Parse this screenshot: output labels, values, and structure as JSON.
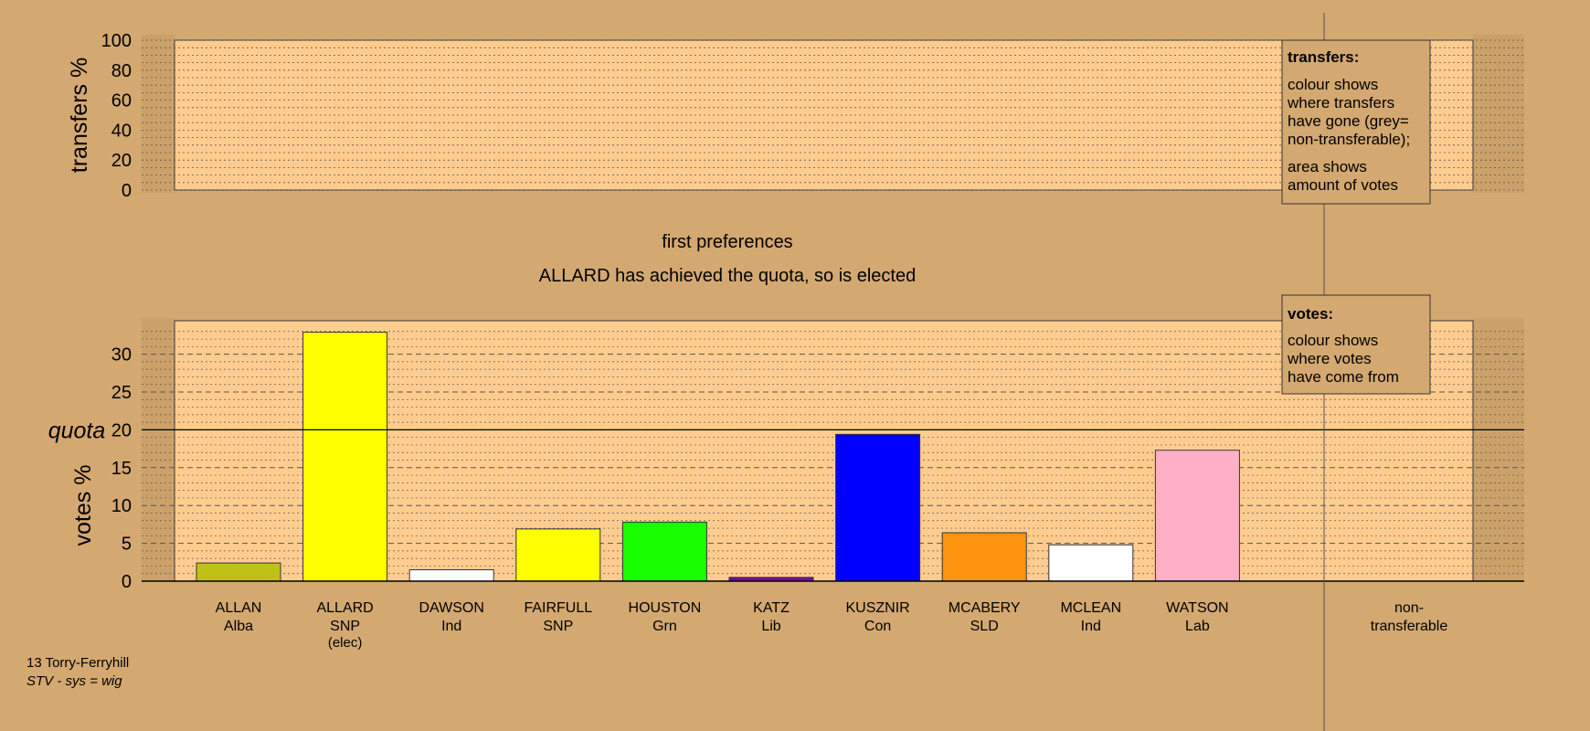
{
  "chart_data": {
    "type": "bar",
    "top_panel": {
      "ylabel": "transfers %",
      "ylim": [
        0,
        100
      ],
      "yticks": [
        "0",
        "20",
        "40",
        "60",
        "80",
        "100"
      ]
    },
    "stage_title": "first preferences",
    "stage_subtitle": "ALLARD has achieved the quota, so is elected",
    "ylabel": "votes %",
    "quota_label": "quota",
    "quota": 20,
    "ylim": [
      0,
      34
    ],
    "yticks": [
      "0",
      "5",
      "10",
      "15",
      "20",
      "25",
      "30"
    ],
    "categories": [
      {
        "name": "ALLAN",
        "party": "Alba",
        "note": ""
      },
      {
        "name": "ALLARD",
        "party": "SNP",
        "note": "(elec)"
      },
      {
        "name": "DAWSON",
        "party": "Ind",
        "note": ""
      },
      {
        "name": "FAIRFULL",
        "party": "SNP",
        "note": ""
      },
      {
        "name": "HOUSTON",
        "party": "Grn",
        "note": ""
      },
      {
        "name": "KATZ",
        "party": "Lib",
        "note": ""
      },
      {
        "name": "KUSZNIR",
        "party": "Con",
        "note": ""
      },
      {
        "name": "MCABERY",
        "party": "SLD",
        "note": ""
      },
      {
        "name": "MCLEAN",
        "party": "Ind",
        "note": ""
      },
      {
        "name": "WATSON",
        "party": "Lab",
        "note": ""
      }
    ],
    "values": [
      2.4,
      32.9,
      1.5,
      6.9,
      7.8,
      0.5,
      19.4,
      6.4,
      4.8,
      17.3
    ],
    "colors": [
      "#c0c018",
      "#ffff00",
      "#ffffff",
      "#ffff00",
      "#1aff00",
      "#7b00a8",
      "#0000ff",
      "#ff9410",
      "#ffffff",
      "#ffb0c8"
    ],
    "nontransferable_label": [
      "non-",
      "transferable"
    ],
    "transfers_box": {
      "title": "transfers:",
      "lines1": [
        "colour shows",
        "where transfers",
        "have gone (grey=",
        "non-transferable);"
      ],
      "lines2": [
        "area shows",
        "amount of votes"
      ]
    },
    "votes_box": {
      "title": "votes:",
      "lines": [
        "colour shows",
        "where votes",
        "have come from"
      ]
    },
    "footer": {
      "ward": "13 Torry-Ferryhill",
      "system": "STV - sys = wig"
    }
  }
}
